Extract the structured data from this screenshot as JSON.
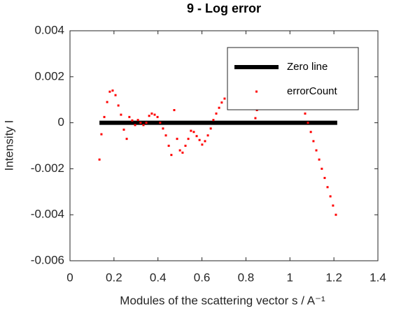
{
  "chart_data": {
    "type": "scatter",
    "title": "9 - Log error",
    "x_label": "Modules of the scattering vector s / A⁻¹",
    "y_label": "Intensity I",
    "xlim": [
      0,
      1.4
    ],
    "ylim": [
      -0.006,
      0.004
    ],
    "xticks": [
      0,
      0.2,
      0.4,
      0.6,
      0.8,
      1,
      1.2,
      1.4
    ],
    "yticks": [
      -0.006,
      -0.004,
      -0.002,
      0,
      0.002,
      0.004
    ],
    "legend": "upper right",
    "series": [
      {
        "name": "Zero line",
        "color": "#000000",
        "style": "line",
        "x": [
          0.134,
          1.215
        ],
        "values": [
          0,
          0
        ]
      },
      {
        "name": "errorCount",
        "color": "#ff0000",
        "style": "markers",
        "x": [
          0.134,
          0.143,
          0.156,
          0.169,
          0.181,
          0.194,
          0.207,
          0.22,
          0.232,
          0.245,
          0.258,
          0.27,
          0.283,
          0.296,
          0.309,
          0.321,
          0.334,
          0.347,
          0.36,
          0.372,
          0.385,
          0.398,
          0.41,
          0.423,
          0.436,
          0.449,
          0.461,
          0.474,
          0.487,
          0.5,
          0.512,
          0.525,
          0.538,
          0.55,
          0.563,
          0.576,
          0.589,
          0.601,
          0.614,
          0.627,
          0.64,
          0.652,
          0.665,
          0.678,
          0.69,
          0.703,
          0.843,
          0.85,
          1.056,
          1.069,
          1.082,
          1.095,
          1.107,
          1.12,
          1.133,
          1.145,
          1.158,
          1.171,
          1.184,
          1.196,
          1.209
        ],
        "values": [
          -0.0016,
          -0.0005,
          0.00025,
          0.0009,
          0.00135,
          0.0014,
          0.0012,
          0.00075,
          0.00035,
          -0.0003,
          -0.0007,
          0.00025,
          0.0001,
          -0.0001,
          0.00012,
          0,
          -0.0001,
          0,
          0.0003,
          0.0004,
          0.00035,
          0.00025,
          0,
          -0.00025,
          -0.00055,
          -0.001,
          -0.0014,
          0.00055,
          -0.0007,
          -0.0012,
          -0.0013,
          -0.001,
          -0.0007,
          -0.00035,
          -0.0004,
          -0.00058,
          -0.00075,
          -0.00095,
          -0.0008,
          -0.00055,
          -0.00025,
          0.00012,
          0.0004,
          0.00065,
          0.00088,
          0.00105,
          0.0002,
          0.00055,
          0.00075,
          0.0004,
          0,
          -0.0004,
          -0.0008,
          -0.0012,
          -0.0016,
          -0.002,
          -0.0024,
          -0.0028,
          -0.0032,
          -0.0036,
          -0.004
        ]
      }
    ]
  }
}
